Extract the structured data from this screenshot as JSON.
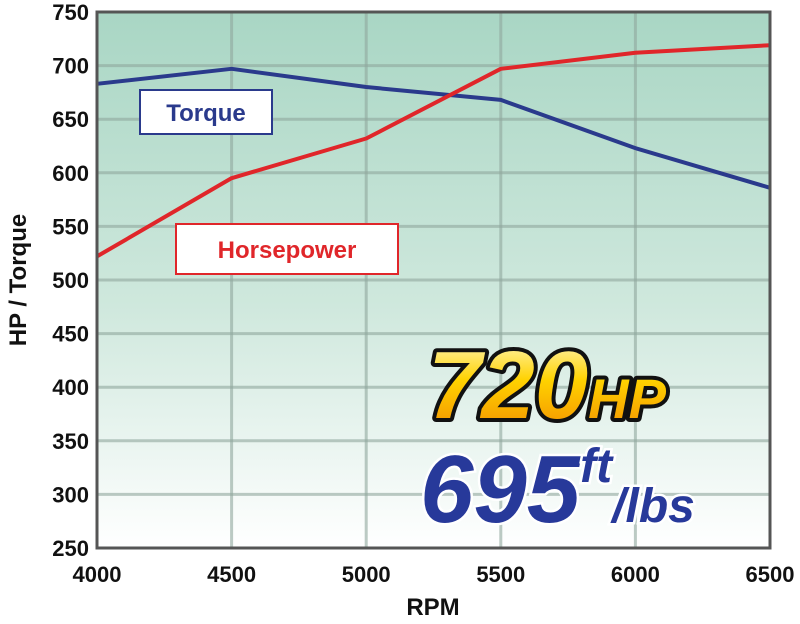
{
  "chart_data": {
    "type": "line",
    "title": "",
    "xlabel": "RPM",
    "ylabel": "HP / Torque",
    "xlim": [
      4000,
      6500
    ],
    "ylim": [
      250,
      750
    ],
    "x_ticks": [
      "4000",
      "4500",
      "5000",
      "5500",
      "6000",
      "6500"
    ],
    "y_ticks": [
      "250",
      "300",
      "350",
      "400",
      "450",
      "500",
      "550",
      "600",
      "650",
      "700",
      "750"
    ],
    "grid": true,
    "x": [
      4000,
      4500,
      5000,
      5500,
      6000,
      6500
    ],
    "series": [
      {
        "name": "Torque",
        "color": "#2a3a8c",
        "values": [
          683,
          697,
          680,
          668,
          623,
          586
        ]
      },
      {
        "name": "Horsepower",
        "color": "#e0262a",
        "values": [
          522,
          595,
          632,
          697,
          712,
          719
        ]
      }
    ],
    "annotations": {
      "hp_number": "720",
      "hp_unit": "HP",
      "torque_number": "695",
      "torque_unit_top": "ft",
      "torque_unit_bottom": "/lbs"
    },
    "colors": {
      "background_top": "#a9d6c4",
      "background_bottom": "#ffffff",
      "hp_text": "#f7b900",
      "torque_text": "#27399a"
    }
  }
}
